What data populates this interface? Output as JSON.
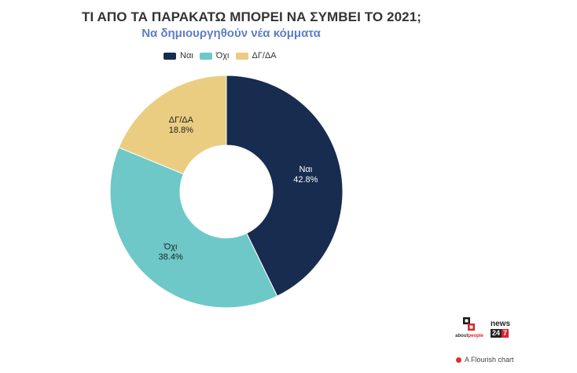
{
  "header": {
    "title": "ΤΙ ΑΠΟ ΤΑ ΠΑΡΑΚΑΤΩ ΜΠΟΡΕΙ ΝΑ ΣΥΜΒΕΙ ΤΟ 2021;",
    "subtitle": "Να δημιουργηθούν νέα κόμματα"
  },
  "chart_data": {
    "type": "pie",
    "donut": true,
    "title": "ΤΙ ΑΠΟ ΤΑ ΠΑΡΑΚΑΤΩ ΜΠΟΡΕΙ ΝΑ ΣΥΜΒΕΙ ΤΟ 2021;",
    "subtitle": "Να δημιουργηθούν νέα κόμματα",
    "legend_position": "top",
    "slices": [
      {
        "label": "Ναι",
        "value": 42.8,
        "display": "42.8%",
        "color": "#172c4e",
        "text_color": "#ffffff"
      },
      {
        "label": "Όχι",
        "value": 38.4,
        "display": "38.4%",
        "color": "#6ec8c8",
        "text_color": "#222222"
      },
      {
        "label": "ΔΓ/ΔΑ",
        "value": 18.8,
        "display": "18.8%",
        "color": "#ebcd82",
        "text_color": "#222222"
      }
    ]
  },
  "branding": {
    "about_logo": {
      "prefix": "about",
      "suffix": "people"
    },
    "news_logo": {
      "name": "news",
      "num1": "24",
      "num2": "7"
    },
    "footer": "A Flourish chart"
  }
}
